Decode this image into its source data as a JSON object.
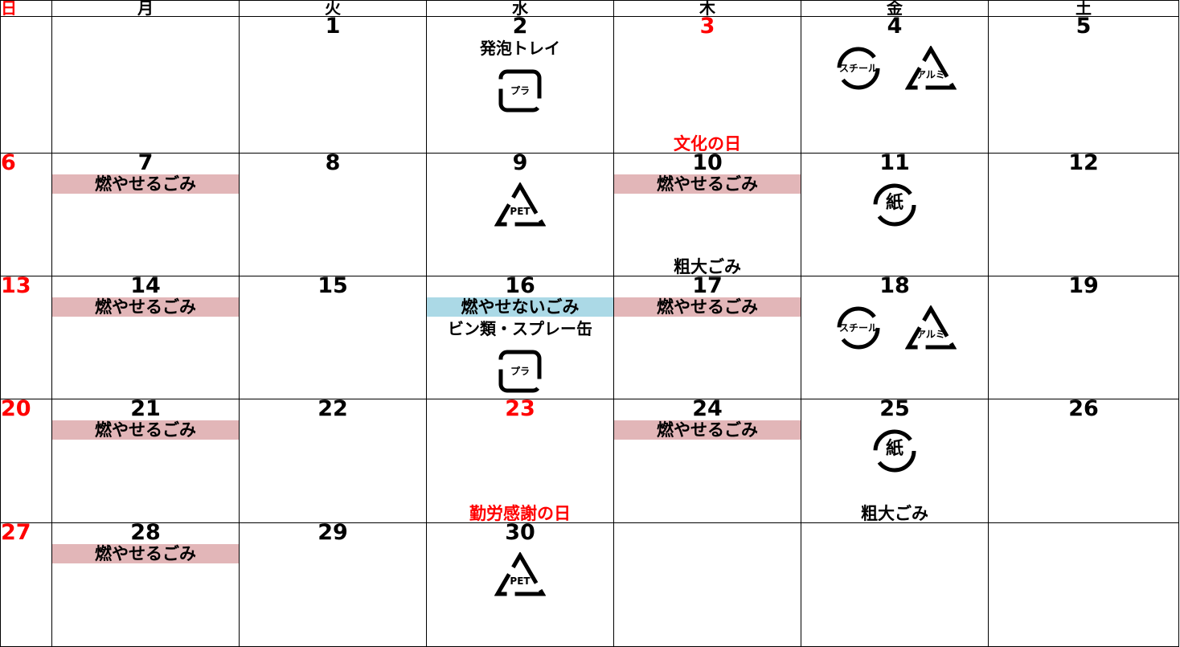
{
  "header": {
    "days": [
      "日",
      "月",
      "火",
      "水",
      "木",
      "金",
      "土"
    ]
  },
  "tag_colors": {
    "burnable": "#e2b6b8",
    "nonburnable": "#abd9e6"
  },
  "weeks": [
    [
      {},
      {},
      {
        "day": 1
      },
      {
        "day": 2,
        "notes": [
          "発泡トレイ"
        ],
        "icons": [
          {
            "label": "プラ",
            "shape": "square"
          }
        ]
      },
      {
        "day": 3,
        "holiday": true,
        "footer": "文化の日"
      },
      {
        "day": 4,
        "icons": [
          {
            "label": "スチール",
            "shape": "circle"
          },
          {
            "label": "アルミ",
            "shape": "triangle"
          }
        ]
      },
      {
        "day": 5
      }
    ],
    [
      {
        "day": 6
      },
      {
        "day": 7,
        "tags": [
          {
            "text": "燃やせるごみ",
            "kind": "burnable"
          }
        ]
      },
      {
        "day": 8
      },
      {
        "day": 9,
        "icons": [
          {
            "label": "PET",
            "shape": "triangle"
          }
        ]
      },
      {
        "day": 10,
        "tags": [
          {
            "text": "燃やせるごみ",
            "kind": "burnable"
          }
        ],
        "footer": "粗大ごみ"
      },
      {
        "day": 11,
        "icons": [
          {
            "label": "紙",
            "shape": "circle"
          }
        ]
      },
      {
        "day": 12
      }
    ],
    [
      {
        "day": 13
      },
      {
        "day": 14,
        "tags": [
          {
            "text": "燃やせるごみ",
            "kind": "burnable"
          }
        ]
      },
      {
        "day": 15
      },
      {
        "day": 16,
        "tags": [
          {
            "text": "燃やせないごみ",
            "kind": "nonburnable"
          }
        ],
        "notes": [
          "ビン類・スプレー缶"
        ],
        "icons": [
          {
            "label": "プラ",
            "shape": "square"
          }
        ]
      },
      {
        "day": 17,
        "tags": [
          {
            "text": "燃やせるごみ",
            "kind": "burnable"
          }
        ]
      },
      {
        "day": 18,
        "icons": [
          {
            "label": "スチール",
            "shape": "circle"
          },
          {
            "label": "アルミ",
            "shape": "triangle"
          }
        ]
      },
      {
        "day": 19
      }
    ],
    [
      {
        "day": 20
      },
      {
        "day": 21,
        "tags": [
          {
            "text": "燃やせるごみ",
            "kind": "burnable"
          }
        ]
      },
      {
        "day": 22
      },
      {
        "day": 23,
        "holiday": true,
        "footer": "勤労感謝の日"
      },
      {
        "day": 24,
        "tags": [
          {
            "text": "燃やせるごみ",
            "kind": "burnable"
          }
        ]
      },
      {
        "day": 25,
        "icons": [
          {
            "label": "紙",
            "shape": "circle"
          }
        ],
        "footer": "粗大ごみ"
      },
      {
        "day": 26
      }
    ],
    [
      {
        "day": 27
      },
      {
        "day": 28,
        "tags": [
          {
            "text": "燃やせるごみ",
            "kind": "burnable"
          }
        ]
      },
      {
        "day": 29
      },
      {
        "day": 30,
        "icons": [
          {
            "label": "PET",
            "shape": "triangle"
          }
        ]
      },
      {},
      {},
      {}
    ]
  ]
}
